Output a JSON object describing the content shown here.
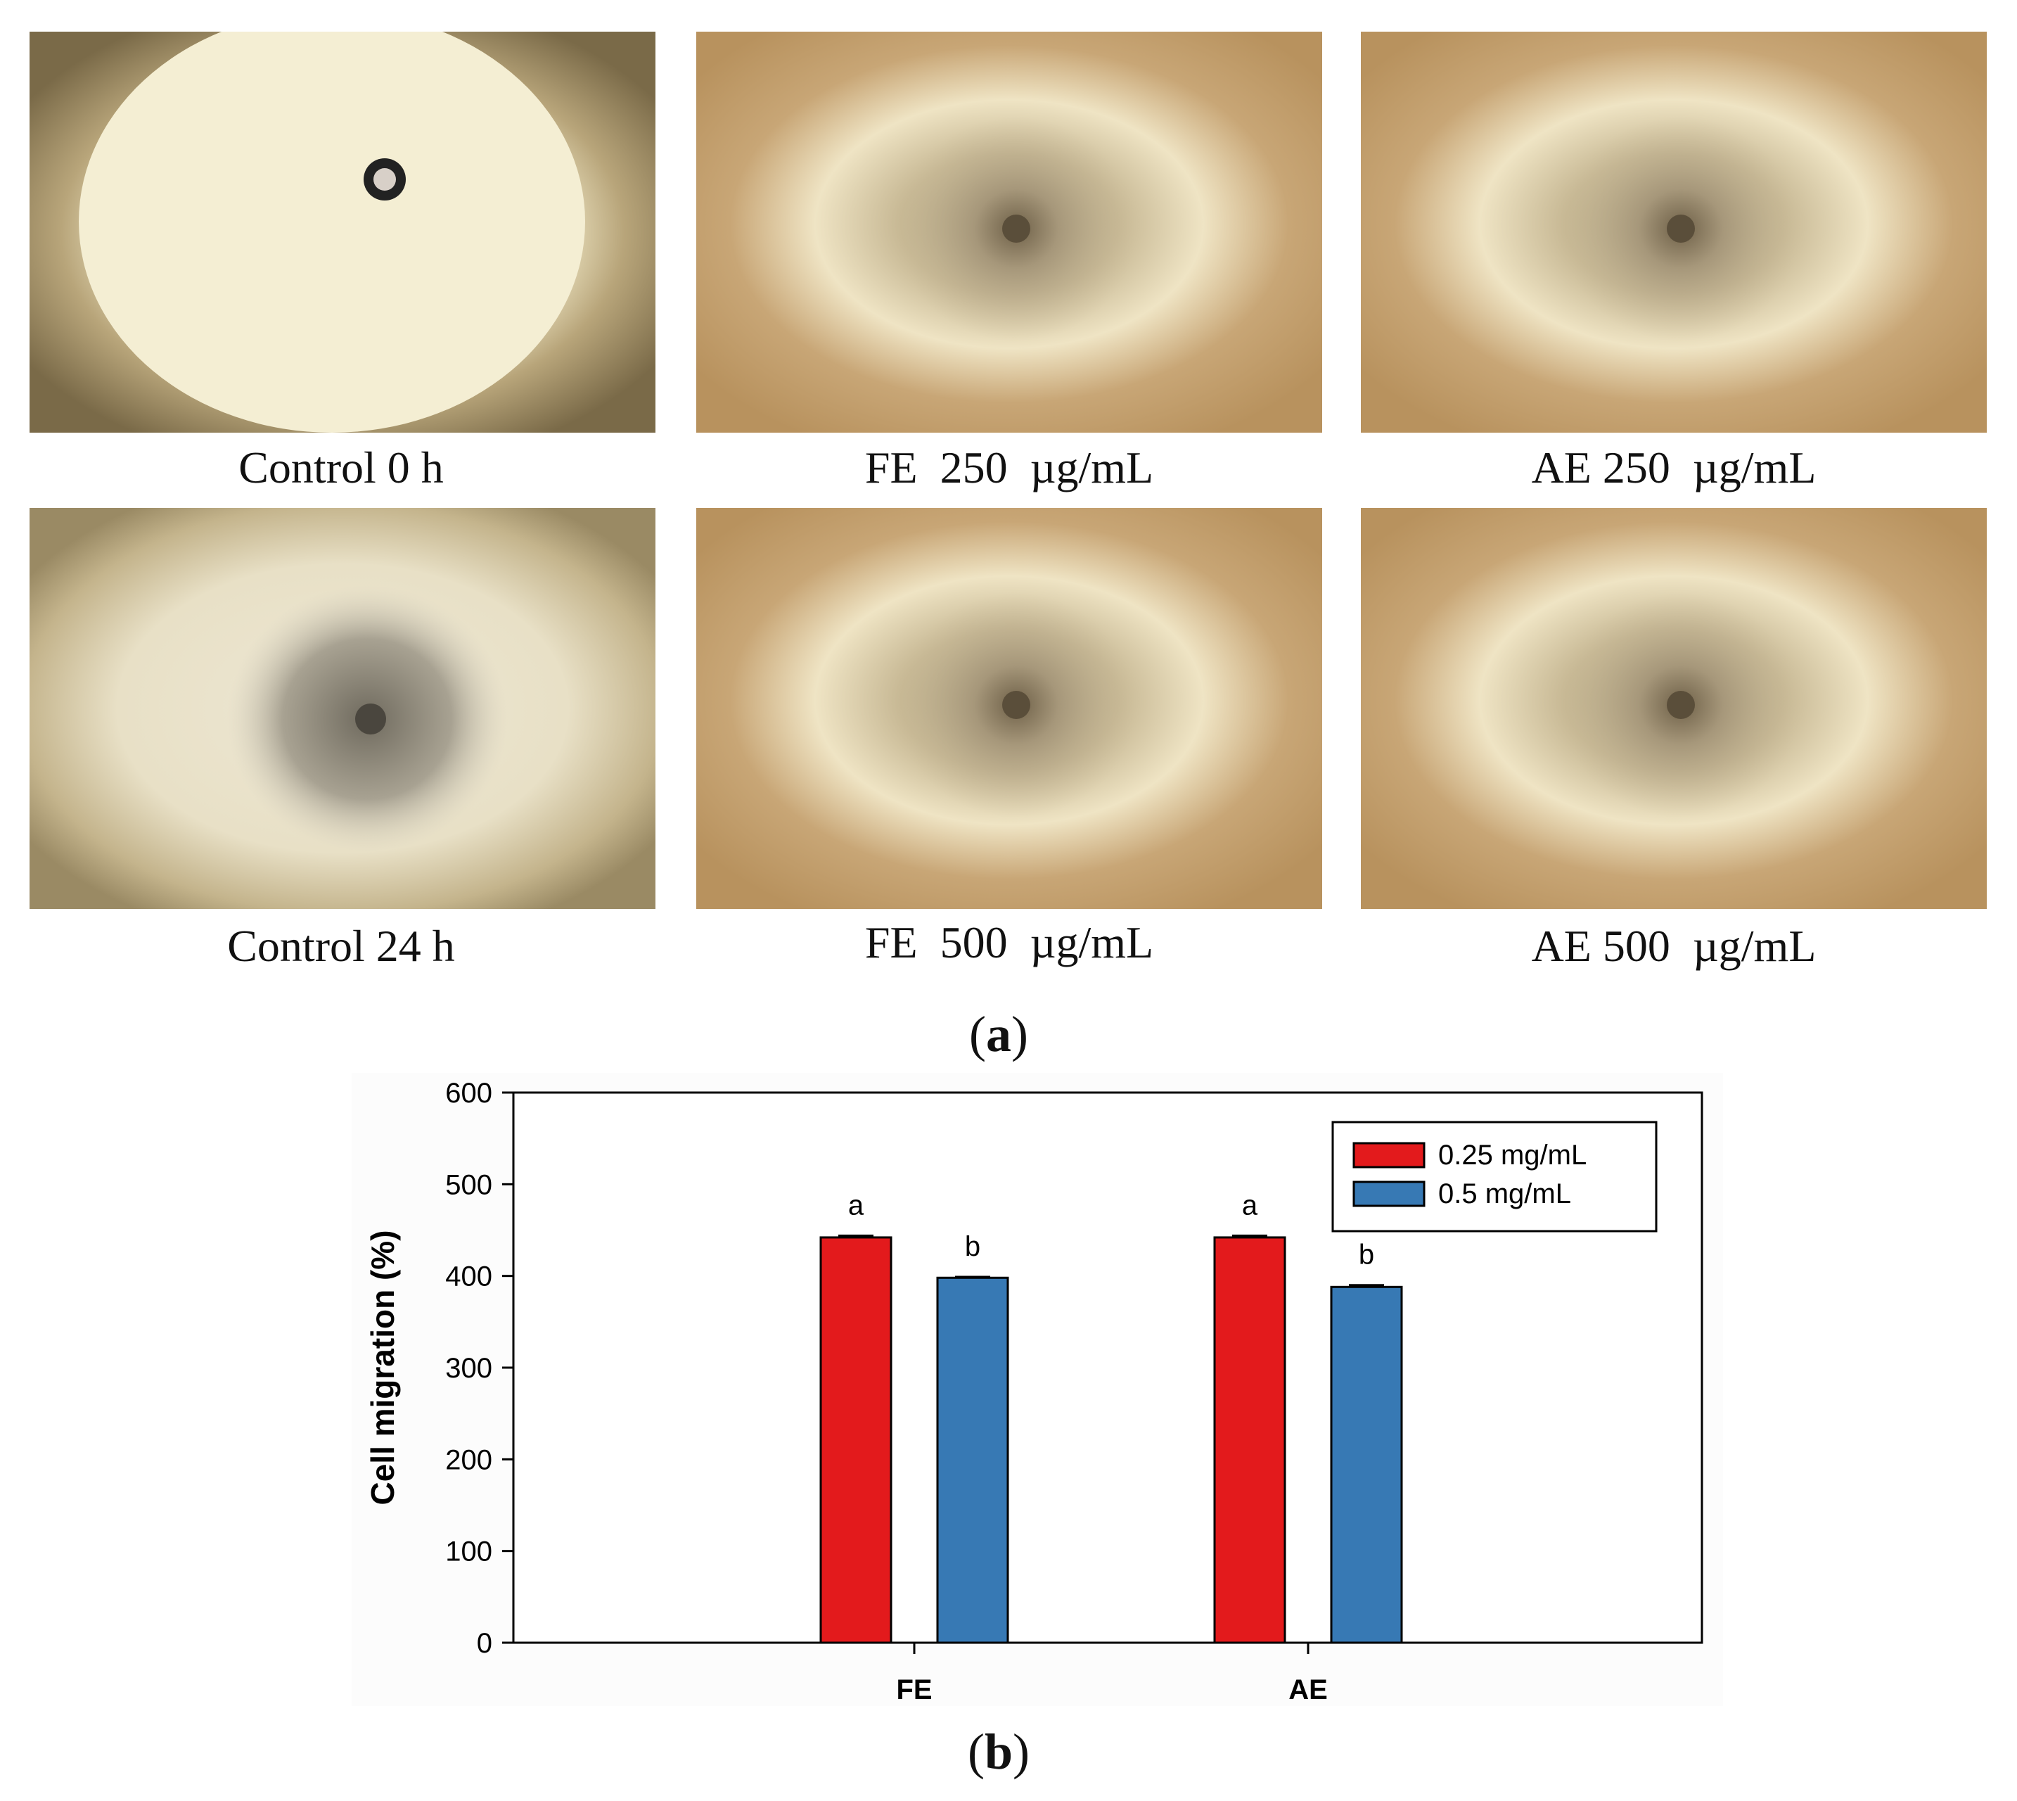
{
  "figure": {
    "panel_a_label": "a",
    "panel_b_label": "b",
    "images": [
      {
        "caption": "Control 0 h",
        "style": "control0"
      },
      {
        "caption": "FE  250  µg/mL",
        "style": "treated"
      },
      {
        "caption": "AE 250  µg/mL",
        "style": "treated"
      },
      {
        "caption": "Control 24 h",
        "style": "control24"
      },
      {
        "caption": "FE  500  µg/mL",
        "style": "treated"
      },
      {
        "caption": "AE 500  µg/mL",
        "style": "treated"
      }
    ]
  },
  "chart_data": {
    "type": "bar",
    "title": "",
    "xlabel": "",
    "ylabel": "Cell migration (%)",
    "ylim": [
      0,
      600
    ],
    "yticks": [
      0,
      100,
      200,
      300,
      400,
      500,
      600
    ],
    "categories": [
      "FE",
      "AE"
    ],
    "series": [
      {
        "name": "0.25 mg/mL",
        "color": "#e31a1c",
        "values": [
          442,
          442
        ],
        "errors": [
          2,
          2
        ],
        "labels": [
          "a",
          "a"
        ]
      },
      {
        "name": "0.5 mg/mL",
        "color": "#3779b4",
        "values": [
          398,
          388
        ],
        "errors": [
          1,
          2
        ],
        "labels": [
          "b",
          "b"
        ]
      }
    ],
    "legend": "top-right"
  }
}
